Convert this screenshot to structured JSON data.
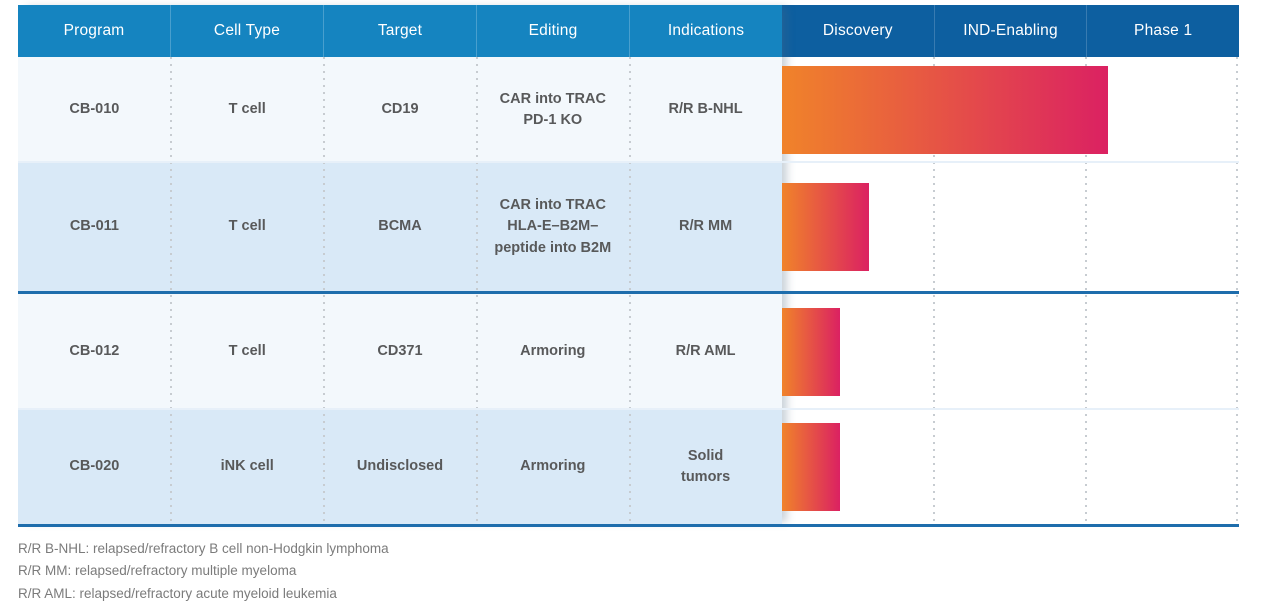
{
  "table": {
    "columns": [
      "Program",
      "Cell Type",
      "Target",
      "Editing",
      "Indications"
    ],
    "rows": [
      {
        "program": "CB-010",
        "cell_type": "T cell",
        "target": "CD19",
        "editing": "CAR into TRAC\nPD-1 KO",
        "indications": "R/R B-NHL"
      },
      {
        "program": "CB-011",
        "cell_type": "T cell",
        "target": "BCMA",
        "editing": "CAR into TRAC\nHLA-E–B2M–\npeptide into B2M",
        "indications": "R/R MM"
      },
      {
        "program": "CB-012",
        "cell_type": "T cell",
        "target": "CD371",
        "editing": "Armoring",
        "indications": "R/R AML"
      },
      {
        "program": "CB-020",
        "cell_type": "iNK cell",
        "target": "Undisclosed",
        "editing": "Armoring",
        "indications": "Solid\ntumors"
      }
    ]
  },
  "phases": [
    "Discovery",
    "IND-Enabling",
    "Phase 1"
  ],
  "chart_data": {
    "type": "bar",
    "orientation": "horizontal",
    "title": "Development pipeline phase progress",
    "categories": [
      "CB-010",
      "CB-011",
      "CB-012",
      "CB-020"
    ],
    "phase_columns": [
      "Discovery",
      "IND-Enabling",
      "Phase 1"
    ],
    "xlim_phase_units": [
      0,
      3
    ],
    "grid": "dotted vertical lines at phase column boundaries",
    "bars": [
      {
        "program": "CB-010",
        "phase_units": 2.14,
        "fraction": 0.713,
        "label_phase": "Phase 1"
      },
      {
        "program": "CB-011",
        "phase_units": 0.57,
        "fraction": 0.19,
        "label_phase": "Discovery"
      },
      {
        "program": "CB-012",
        "phase_units": 0.38,
        "fraction": 0.127,
        "label_phase": "Discovery"
      },
      {
        "program": "CB-020",
        "phase_units": 0.38,
        "fraction": 0.127,
        "label_phase": "Discovery"
      }
    ]
  },
  "footnotes": [
    "R/R B-NHL: relapsed/refractory B cell non-Hodgkin lymphoma",
    "R/R MM: relapsed/refractory multiple myeloma",
    "R/R AML: relapsed/refractory acute myeloid leukemia"
  ],
  "colors": {
    "header_left_bg": "#1584c0",
    "header_right_bg": "#0d5fa0",
    "row_light": "#f3f8fc",
    "row_shaded": "#d9e9f7",
    "bar_gradient_start": "#f0832a",
    "bar_gradient_end": "#db2162",
    "divider_blue": "#1e6dac",
    "cell_text": "#58595a",
    "footnote_text": "#7b7b7b"
  }
}
